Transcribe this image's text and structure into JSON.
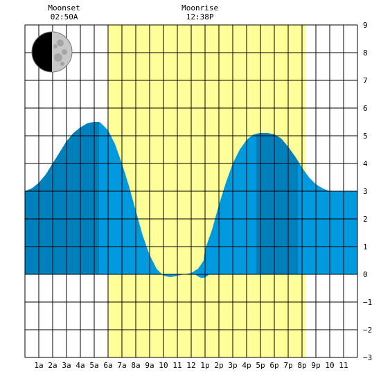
{
  "chart_data": {
    "type": "area",
    "title": "",
    "xlabel": "",
    "ylabel": "",
    "xlim": [
      0,
      24
    ],
    "ylim": [
      -3,
      9
    ],
    "x_ticks": [
      "1a",
      "2a",
      "3a",
      "4a",
      "5a",
      "6a",
      "7a",
      "8a",
      "9a",
      "10",
      "11",
      "12",
      "1p",
      "2p",
      "3p",
      "4p",
      "5p",
      "6p",
      "7p",
      "8p",
      "9p",
      "10",
      "11"
    ],
    "y_ticks": [
      -3,
      -2,
      -1,
      0,
      1,
      2,
      3,
      4,
      5,
      6,
      7,
      8,
      9
    ],
    "grid": true,
    "tide_curve": {
      "x": [
        0,
        0.5,
        1,
        1.5,
        2,
        2.5,
        3,
        3.5,
        4,
        4.5,
        5,
        5.35,
        5.5,
        6,
        6.5,
        7,
        7.5,
        8,
        8.5,
        9,
        9.5,
        10,
        10.5,
        11,
        11.5,
        12,
        12.5,
        12.9,
        13,
        13.5,
        14,
        14.5,
        15,
        15.5,
        16,
        16.5,
        17,
        17.5,
        18,
        18.5,
        19,
        19.5,
        19.7,
        20,
        20.5,
        21,
        21.5,
        22,
        22.5,
        23,
        23.5,
        24
      ],
      "y": [
        3.0,
        3.1,
        3.3,
        3.6,
        4.0,
        4.4,
        4.8,
        5.1,
        5.3,
        5.45,
        5.5,
        5.5,
        5.45,
        5.2,
        4.7,
        4.0,
        3.2,
        2.3,
        1.4,
        0.7,
        0.2,
        -0.05,
        -0.1,
        -0.05,
        0.0,
        0.05,
        0.2,
        0.5,
        0.9,
        1.6,
        2.5,
        3.3,
        4.0,
        4.5,
        4.85,
        5.05,
        5.1,
        5.1,
        5.05,
        4.9,
        4.6,
        4.25,
        4.1,
        3.85,
        3.5,
        3.25,
        3.1,
        3.0,
        3.0,
        3.0,
        3.0,
        3.0
      ]
    },
    "high_tides": [
      {
        "x_start": 0,
        "x_end": 5.35
      },
      {
        "x_start": 16.7,
        "x_end": 19.7
      }
    ],
    "low_tide_band": {
      "x_start": 12.3,
      "x_end": 13.3
    },
    "daylight": {
      "x_start": 6.0,
      "x_end": 20.3
    },
    "annotations": [
      {
        "label": "Moonset",
        "time": "02:50A",
        "x": 2.83
      },
      {
        "label": "Moonrise",
        "time": "12:38P",
        "x": 12.63
      }
    ],
    "moon_phase": "first-quarter",
    "colors": {
      "daylight": "#ffff99",
      "water_light": "#0099dd",
      "water_dark": "#0080bb",
      "grid": "#000000",
      "moon_light": "#c8c8c8",
      "moon_dark": "#000000"
    }
  }
}
